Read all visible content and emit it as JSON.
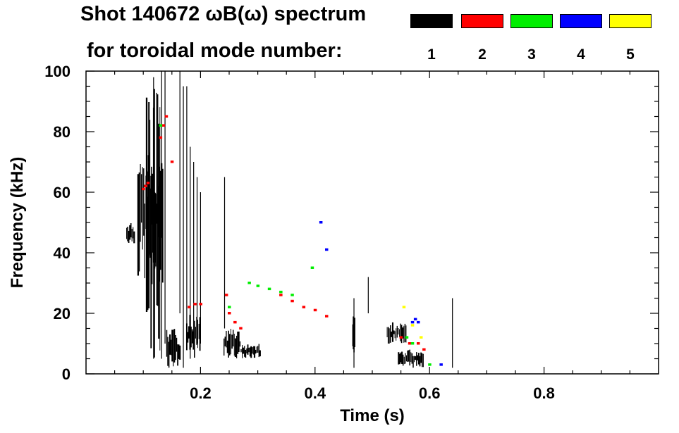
{
  "legend": {
    "title_line1": "Shot 140672 ωB(ω) spectrum",
    "title_line2": "for toroidal mode number:",
    "modes": [
      {
        "label": "1",
        "color": "#000000"
      },
      {
        "label": "2",
        "color": "#ff0000"
      },
      {
        "label": "3",
        "color": "#00ee00"
      },
      {
        "label": "4",
        "color": "#0000ff"
      },
      {
        "label": "5",
        "color": "#ffff00"
      }
    ]
  },
  "chart_data": {
    "type": "heatmap",
    "title": "Shot 140672 ωB(ω) spectrum",
    "xlabel": "Time (s)",
    "ylabel": "Frequency (kHz)",
    "xlim": [
      0.0,
      1.0
    ],
    "ylim": [
      0,
      100
    ],
    "xticks": [
      0.2,
      0.4,
      0.6,
      0.8
    ],
    "xtick_labels": [
      "0.2",
      "0.4",
      "0.6",
      "0.8"
    ],
    "yticks": [
      0,
      20,
      40,
      60,
      80,
      100
    ],
    "ytick_labels": [
      "0",
      "20",
      "40",
      "60",
      "80",
      "100"
    ],
    "legend_position": "top-right",
    "series": [
      {
        "name": "1",
        "color": "#000000",
        "bursts": [
          {
            "t0": 0.07,
            "t1": 0.085,
            "f0": 43,
            "f1": 50
          },
          {
            "t0": 0.09,
            "t1": 0.135,
            "f0": 30,
            "f1": 75
          },
          {
            "t0": 0.105,
            "t1": 0.13,
            "f0": 2,
            "f1": 95
          },
          {
            "t0": 0.14,
            "t1": 0.165,
            "f0": 2,
            "f1": 15
          },
          {
            "t0": 0.175,
            "t1": 0.2,
            "f0": 5,
            "f1": 20
          },
          {
            "t0": 0.24,
            "t1": 0.27,
            "f0": 5,
            "f1": 15
          },
          {
            "t0": 0.27,
            "t1": 0.305,
            "f0": 5,
            "f1": 10
          },
          {
            "t0": 0.465,
            "t1": 0.47,
            "f0": 5,
            "f1": 20
          },
          {
            "t0": 0.525,
            "t1": 0.56,
            "f0": 10,
            "f1": 17
          },
          {
            "t0": 0.545,
            "t1": 0.59,
            "f0": 2,
            "f1": 8
          }
        ],
        "lines": [
          {
            "t": 0.118,
            "f0": 5,
            "f1": 98
          },
          {
            "t": 0.132,
            "f0": 5,
            "f1": 100
          },
          {
            "t": 0.138,
            "f0": 10,
            "f1": 100
          },
          {
            "t": 0.164,
            "f0": 20,
            "f1": 100
          },
          {
            "t": 0.17,
            "f0": 2,
            "f1": 95
          },
          {
            "t": 0.176,
            "f0": 10,
            "f1": 95
          },
          {
            "t": 0.182,
            "f0": 5,
            "f1": 75
          },
          {
            "t": 0.188,
            "f0": 10,
            "f1": 70
          },
          {
            "t": 0.194,
            "f0": 10,
            "f1": 65
          },
          {
            "t": 0.2,
            "f0": 10,
            "f1": 60
          },
          {
            "t": 0.242,
            "f0": 15,
            "f1": 65
          },
          {
            "t": 0.468,
            "f0": 2,
            "f1": 25
          },
          {
            "t": 0.493,
            "f0": 20,
            "f1": 32
          },
          {
            "t": 0.64,
            "f0": 2,
            "f1": 25
          }
        ]
      },
      {
        "name": "2",
        "color": "#ff0000",
        "points": [
          [
            0.1,
            61
          ],
          [
            0.104,
            62
          ],
          [
            0.108,
            63
          ],
          [
            0.13,
            78
          ],
          [
            0.135,
            82
          ],
          [
            0.14,
            85
          ],
          [
            0.15,
            70
          ],
          [
            0.18,
            22
          ],
          [
            0.19,
            23
          ],
          [
            0.2,
            23
          ],
          [
            0.245,
            26
          ],
          [
            0.25,
            20
          ],
          [
            0.26,
            17
          ],
          [
            0.27,
            15
          ],
          [
            0.34,
            26
          ],
          [
            0.36,
            24
          ],
          [
            0.38,
            22
          ],
          [
            0.4,
            21
          ],
          [
            0.42,
            19
          ],
          [
            0.55,
            12
          ],
          [
            0.565,
            10
          ],
          [
            0.58,
            10
          ],
          [
            0.59,
            8
          ]
        ]
      },
      {
        "name": "3",
        "color": "#00ee00",
        "points": [
          [
            0.13,
            82
          ],
          [
            0.25,
            22
          ],
          [
            0.285,
            30
          ],
          [
            0.3,
            29
          ],
          [
            0.32,
            28
          ],
          [
            0.34,
            27
          ],
          [
            0.36,
            26
          ],
          [
            0.395,
            35
          ],
          [
            0.56,
            12
          ],
          [
            0.57,
            10
          ],
          [
            0.6,
            3
          ]
        ]
      },
      {
        "name": "4",
        "color": "#0000ff",
        "points": [
          [
            0.41,
            50
          ],
          [
            0.42,
            41
          ],
          [
            0.57,
            17
          ],
          [
            0.575,
            18
          ],
          [
            0.58,
            17
          ],
          [
            0.62,
            3
          ]
        ]
      },
      {
        "name": "5",
        "color": "#ffff00",
        "points": [
          [
            0.555,
            22
          ],
          [
            0.57,
            16
          ],
          [
            0.585,
            12
          ]
        ]
      }
    ]
  }
}
